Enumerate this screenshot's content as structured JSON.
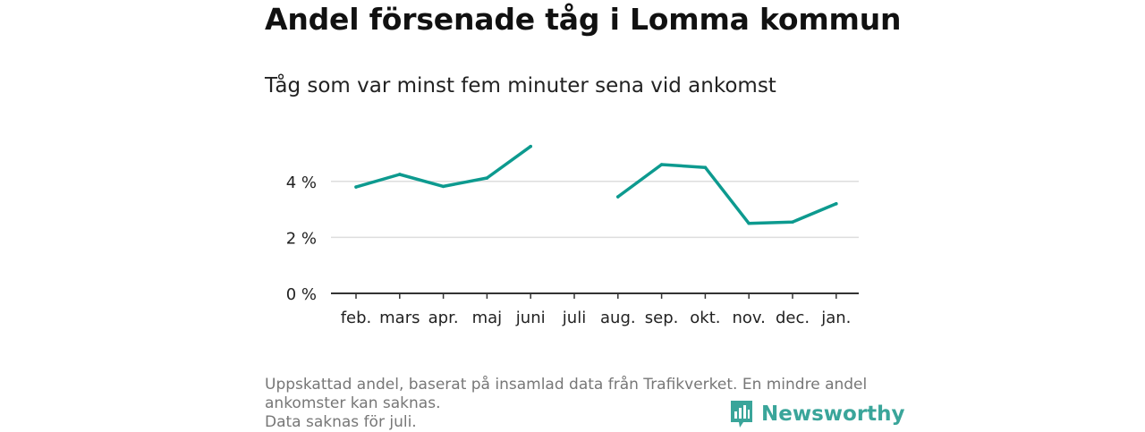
{
  "title": "Andel försenade tåg i Lomma kommun",
  "subtitle": "Tåg som var minst fem minuter sena vid ankomst",
  "footnote": [
    "Uppskattad andel, baserat på insamlad data från Trafikverket. En mindre andel",
    "ankomster kan saknas.",
    "Data saknas för juli."
  ],
  "brand": {
    "name": "Newsworthy",
    "icon": "newsworthy-logo-icon"
  },
  "colors": {
    "line": "#0d9a8f",
    "grid": "#dddddd",
    "axis": "#333333",
    "brand": "#3aa59a"
  },
  "chart_data": {
    "type": "line",
    "title": "Andel försenade tåg i Lomma kommun",
    "subtitle": "Tåg som var minst fem minuter sena vid ankomst",
    "categories": [
      "feb.",
      "mars",
      "apr.",
      "maj",
      "juni",
      "juli",
      "aug.",
      "sep.",
      "okt.",
      "nov.",
      "dec.",
      "jan."
    ],
    "series": [
      {
        "values": [
          3.8,
          4.25,
          3.82,
          4.12,
          5.25,
          null,
          3.45,
          4.6,
          4.5,
          2.5,
          2.55,
          3.2
        ]
      }
    ],
    "yticks": [
      0,
      2,
      4
    ],
    "ytick_labels": [
      "0 %",
      "2 %",
      "4 %"
    ],
    "ylim": [
      0,
      5.6
    ],
    "grid": true,
    "legend": "none"
  }
}
